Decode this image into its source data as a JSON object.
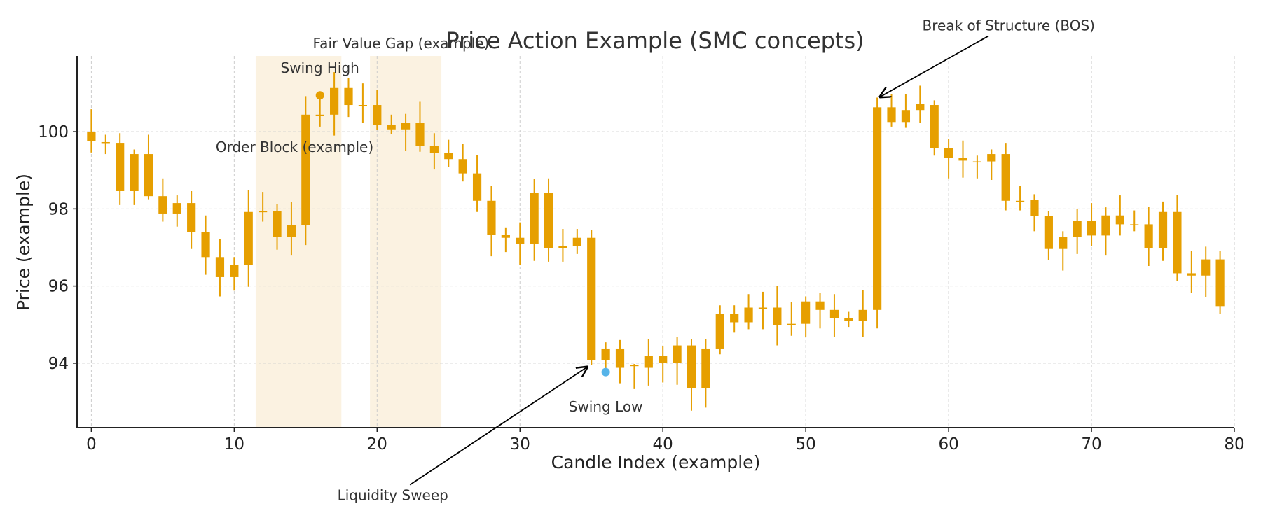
{
  "chart_data": {
    "type": "candlestick",
    "title": "Price Action Example (SMC concepts)",
    "xlabel": "Candle Index (example)",
    "ylabel": "Price (example)",
    "xlim": [
      -1,
      80
    ],
    "ylim": [
      92.33,
      101.96
    ],
    "xticks": [
      0,
      10,
      20,
      30,
      40,
      50,
      60,
      70,
      80
    ],
    "yticks": [
      94,
      96,
      98,
      100
    ],
    "grid": true,
    "candle_color": "#E69F00",
    "ohlc": [
      [
        100.0,
        100.58,
        99.46,
        99.75
      ],
      [
        99.73,
        99.92,
        99.42,
        99.73
      ],
      [
        99.71,
        99.96,
        98.1,
        98.46
      ],
      [
        98.46,
        99.54,
        98.1,
        99.42
      ],
      [
        99.42,
        99.92,
        98.25,
        98.33
      ],
      [
        98.33,
        98.79,
        97.67,
        97.88
      ],
      [
        97.88,
        98.35,
        97.54,
        98.15
      ],
      [
        98.15,
        98.46,
        96.96,
        97.4
      ],
      [
        97.4,
        97.83,
        96.29,
        96.75
      ],
      [
        96.75,
        97.21,
        95.73,
        96.23
      ],
      [
        96.23,
        96.75,
        95.88,
        96.54
      ],
      [
        96.54,
        98.48,
        95.98,
        97.92
      ],
      [
        97.94,
        98.44,
        97.67,
        97.94
      ],
      [
        97.94,
        98.13,
        96.94,
        97.27
      ],
      [
        97.27,
        98.17,
        96.79,
        97.58
      ],
      [
        97.58,
        100.92,
        97.06,
        100.44
      ],
      [
        100.44,
        100.92,
        100.13,
        100.44
      ],
      [
        100.44,
        101.54,
        99.9,
        101.13
      ],
      [
        101.13,
        101.38,
        100.38,
        100.69
      ],
      [
        100.69,
        101.25,
        100.23,
        100.69
      ],
      [
        100.69,
        101.08,
        100.04,
        100.17
      ],
      [
        100.17,
        100.44,
        99.94,
        100.06
      ],
      [
        100.06,
        100.46,
        99.5,
        100.23
      ],
      [
        100.23,
        100.79,
        99.48,
        99.63
      ],
      [
        99.63,
        99.96,
        99.02,
        99.44
      ],
      [
        99.44,
        99.79,
        99.08,
        99.29
      ],
      [
        99.29,
        99.69,
        98.71,
        98.92
      ],
      [
        98.92,
        99.4,
        97.92,
        98.21
      ],
      [
        98.21,
        98.6,
        96.77,
        97.33
      ],
      [
        97.33,
        97.52,
        96.88,
        97.25
      ],
      [
        97.25,
        97.65,
        96.54,
        97.1
      ],
      [
        97.1,
        98.77,
        96.65,
        98.42
      ],
      [
        98.42,
        98.79,
        96.63,
        96.98
      ],
      [
        97.04,
        97.48,
        96.63,
        96.98
      ],
      [
        97.04,
        97.48,
        96.83,
        97.25
      ],
      [
        97.25,
        97.46,
        93.96,
        94.08
      ],
      [
        94.08,
        94.54,
        93.79,
        94.38
      ],
      [
        94.38,
        94.6,
        93.48,
        93.88
      ],
      [
        93.95,
        93.98,
        93.33,
        93.94
      ],
      [
        93.88,
        94.63,
        93.42,
        94.19
      ],
      [
        94.19,
        94.44,
        93.5,
        94.0
      ],
      [
        94.0,
        94.67,
        93.44,
        94.46
      ],
      [
        94.46,
        94.63,
        92.77,
        93.35
      ],
      [
        93.35,
        94.63,
        92.85,
        94.38
      ],
      [
        94.38,
        95.5,
        94.23,
        95.27
      ],
      [
        95.27,
        95.5,
        94.79,
        95.06
      ],
      [
        95.06,
        95.79,
        94.88,
        95.44
      ],
      [
        95.44,
        95.85,
        94.88,
        95.44
      ],
      [
        95.44,
        96.0,
        94.46,
        94.98
      ],
      [
        95.02,
        95.58,
        94.71,
        94.98
      ],
      [
        95.02,
        95.73,
        94.67,
        95.6
      ],
      [
        95.6,
        95.83,
        94.9,
        95.38
      ],
      [
        95.38,
        95.79,
        94.67,
        95.17
      ],
      [
        95.17,
        95.33,
        94.94,
        95.1
      ],
      [
        95.1,
        95.9,
        94.67,
        95.38
      ],
      [
        95.38,
        100.88,
        94.9,
        100.63
      ],
      [
        100.63,
        100.98,
        100.13,
        100.25
      ],
      [
        100.25,
        100.98,
        100.1,
        100.56
      ],
      [
        100.56,
        101.19,
        100.23,
        100.71
      ],
      [
        100.69,
        100.81,
        99.38,
        99.58
      ],
      [
        99.58,
        99.81,
        98.79,
        99.33
      ],
      [
        99.33,
        99.77,
        98.81,
        99.25
      ],
      [
        99.23,
        99.38,
        98.79,
        99.23
      ],
      [
        99.23,
        99.54,
        98.75,
        99.42
      ],
      [
        99.42,
        99.71,
        97.96,
        98.21
      ],
      [
        98.21,
        98.6,
        97.96,
        98.21
      ],
      [
        98.23,
        98.38,
        97.42,
        97.81
      ],
      [
        97.81,
        97.94,
        96.67,
        96.96
      ],
      [
        96.96,
        97.42,
        96.4,
        97.27
      ],
      [
        97.27,
        98.0,
        96.83,
        97.69
      ],
      [
        97.69,
        98.15,
        97.04,
        97.31
      ],
      [
        97.31,
        98.04,
        96.79,
        97.83
      ],
      [
        97.83,
        98.35,
        97.31,
        97.6
      ],
      [
        97.6,
        97.96,
        97.42,
        97.6
      ],
      [
        97.6,
        98.06,
        96.52,
        96.98
      ],
      [
        96.98,
        98.19,
        96.65,
        97.92
      ],
      [
        97.92,
        98.35,
        96.13,
        96.33
      ],
      [
        96.33,
        96.9,
        95.83,
        96.27
      ],
      [
        96.27,
        97.02,
        95.71,
        96.69
      ],
      [
        96.69,
        96.9,
        95.27,
        95.48
      ]
    ],
    "zones": [
      {
        "label": "Order Block (example)",
        "x0": 11.5,
        "x1": 17.5,
        "label_x": 8.7,
        "label_y": 99.6
      },
      {
        "label": "Fair Value Gap (example)",
        "x0": 19.5,
        "x1": 24.5,
        "label_x": 15.5,
        "label_y": 102.29
      }
    ],
    "zone_color": "#FBF2E1",
    "markers": [
      {
        "label": "Swing High",
        "x": 16,
        "y": 100.94,
        "color": "#E69F00",
        "label_x": 16,
        "label_y": 101.65
      },
      {
        "label": "Swing Low",
        "x": 36,
        "y": 93.77,
        "color": "#56B4E9",
        "label_x": 36,
        "label_y": 92.87
      }
    ],
    "arrows": [
      {
        "label": "Liquidity Sweep",
        "label_x": 21.1,
        "label_y": 90.58,
        "from": [
          22.3,
          90.85
        ],
        "to": [
          34.7,
          93.9
        ]
      },
      {
        "label": "Break of Structure (BOS)",
        "label_x": 64.2,
        "label_y": 102.75,
        "from": [
          62.8,
          102.48
        ],
        "to": [
          55.2,
          100.9
        ]
      }
    ]
  }
}
